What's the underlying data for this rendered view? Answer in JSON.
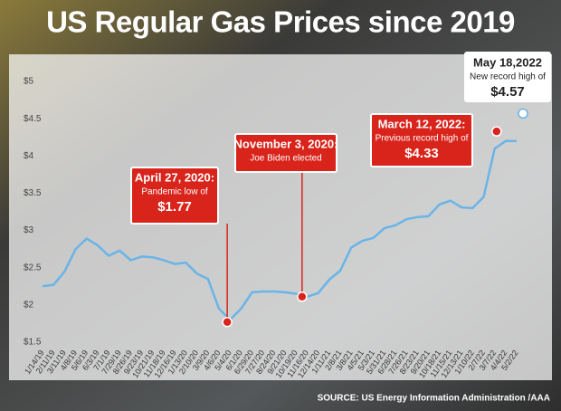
{
  "chart_data": {
    "type": "line",
    "title": "US Regular Gas Prices since 2019",
    "source": "SOURCE: US Energy Information Administration /AAA",
    "categories": [
      "1/14/19",
      "2/11/19",
      "3/11/19",
      "4/8/19",
      "5/6/19",
      "6/3/19",
      "7/1/19",
      "7/29/19",
      "8/26/19",
      "9/23/19",
      "10/21/19",
      "11/18/19",
      "12/16/19",
      "1/13/20",
      "2/10/20",
      "3/9/20",
      "4/6/20",
      "5/4/20",
      "6/1/20",
      "6/29/20",
      "7/27/20",
      "8/24/20",
      "9/21/20",
      "10/19/20",
      "11/16/20",
      "12/14/20",
      "1/11/21",
      "2/8/21",
      "3/8/21",
      "4/5/21",
      "5/3/21",
      "5/31/21",
      "6/28/21",
      "7/26/21",
      "8/23/21",
      "9/20/21",
      "10/18/21",
      "11/15/21",
      "12/13/21",
      "1/10/22",
      "2/7/22",
      "3/7/22",
      "4/4/22",
      "5/2/22"
    ],
    "values": [
      2.25,
      2.27,
      2.45,
      2.75,
      2.89,
      2.8,
      2.66,
      2.73,
      2.6,
      2.65,
      2.64,
      2.6,
      2.55,
      2.57,
      2.42,
      2.35,
      1.95,
      1.8,
      1.95,
      2.17,
      2.18,
      2.18,
      2.17,
      2.15,
      2.11,
      2.16,
      2.34,
      2.46,
      2.77,
      2.86,
      2.9,
      3.03,
      3.07,
      3.15,
      3.18,
      3.19,
      3.35,
      3.4,
      3.31,
      3.3,
      3.45,
      4.1,
      4.2,
      4.2
    ],
    "color": "#6ab4e8",
    "ylim": [
      1.5,
      5
    ],
    "yticks": [
      {
        "value": 1.5,
        "label": "$1.5"
      },
      {
        "value": 2,
        "label": "$2"
      },
      {
        "value": 2.5,
        "label": "$2.5"
      },
      {
        "value": 3,
        "label": "$3"
      },
      {
        "value": 3.5,
        "label": "$3.5"
      },
      {
        "value": 4,
        "label": "$4"
      },
      {
        "value": 4.5,
        "label": "$4.5"
      },
      {
        "value": 5,
        "label": "$5"
      }
    ],
    "annotations": [
      {
        "title": "April 27, 2020:",
        "text": "Pandemic low of",
        "value": 1.77,
        "value_label": "$1.77"
      },
      {
        "title": "November 3, 2020:",
        "text": "Joe Biden elected",
        "value": 2.11
      },
      {
        "title": "March 12, 2022:",
        "text": "Previous record high of",
        "value": 4.33,
        "value_label": "$4.33"
      },
      {
        "title": "May 18,2022",
        "text": "New record high of",
        "value": 4.57,
        "value_label": "$4.57"
      }
    ]
  }
}
